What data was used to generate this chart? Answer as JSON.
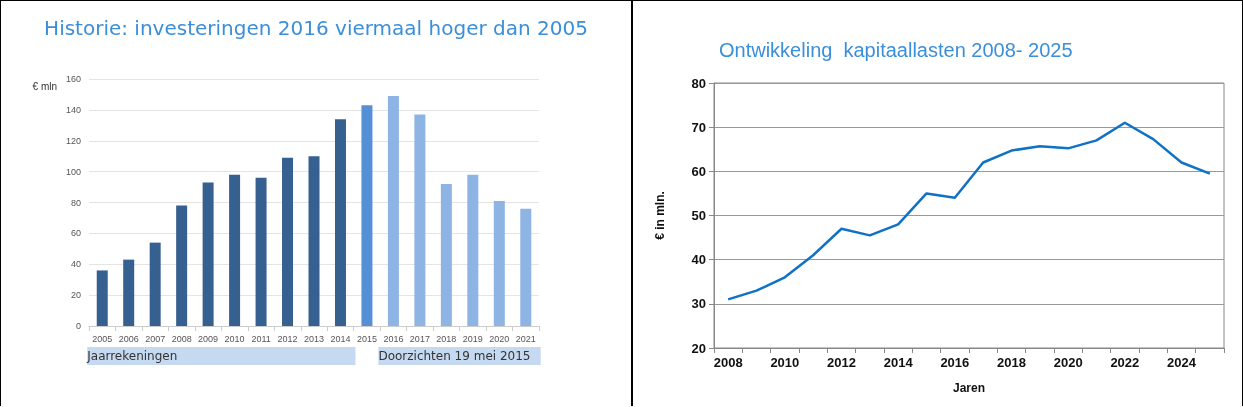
{
  "chart_data": [
    {
      "type": "bar",
      "title": "Historie: investeringen 2016 viermaal hoger dan 2005",
      "ylabel": "€ mln",
      "categories": [
        "2005",
        "2006",
        "2007",
        "2008",
        "2009",
        "2010",
        "2011",
        "2012",
        "2013",
        "2014",
        "2015",
        "2016",
        "2017",
        "2018",
        "2019",
        "2020",
        "2021"
      ],
      "values": [
        36,
        43,
        54,
        78,
        93,
        98,
        96,
        109,
        110,
        134,
        143,
        149,
        137,
        92,
        98,
        81,
        76
      ],
      "colors": [
        "#36608f",
        "#36608f",
        "#36608f",
        "#36608f",
        "#36608f",
        "#36608f",
        "#36608f",
        "#36608f",
        "#36608f",
        "#36608f",
        "#5590d6",
        "#8db4e2",
        "#8db4e2",
        "#8db4e2",
        "#8db4e2",
        "#8db4e2",
        "#8db4e2"
      ],
      "ylim": [
        0,
        160
      ],
      "yticks": [
        0,
        20,
        40,
        60,
        80,
        100,
        120,
        140,
        160
      ],
      "grid": "y",
      "annotations": [
        "Jaarrekeningen",
        "Doorzichten 19 mei 2015"
      ]
    },
    {
      "type": "line",
      "title": "Ontwikkeling  kapitaallasten 2008- 2025",
      "xlabel": "Jaren",
      "ylabel": "€ in mln.",
      "categories": [
        "2008",
        null,
        "2010",
        null,
        "2012",
        null,
        "2014",
        null,
        "2016",
        null,
        "2018",
        null,
        "2020",
        null,
        "2022",
        null,
        "2024",
        null
      ],
      "series": [
        {
          "color": "#0f72c4",
          "values": [
            31,
            33,
            36,
            41,
            47,
            45.5,
            48,
            55,
            54,
            62,
            64.7,
            65.7,
            65.2,
            67,
            71,
            67.3,
            62,
            59.5
          ]
        }
      ],
      "ylim": [
        20,
        80
      ],
      "yticks": [
        20,
        30,
        40,
        50,
        60,
        70,
        80
      ],
      "grid": "y",
      "marker": "none",
      "line_style": "solid"
    }
  ]
}
